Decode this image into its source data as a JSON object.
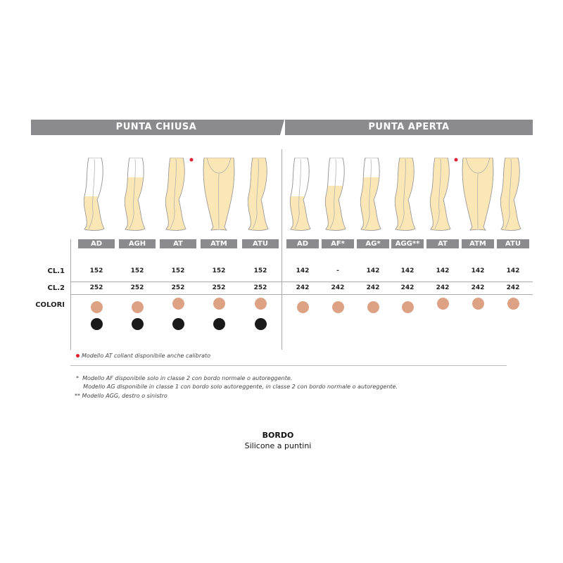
{
  "sections": [
    {
      "title": "PUNTA CHIUSA",
      "models": [
        {
          "label": "AD",
          "cl1": "152",
          "cl2": "252",
          "colors": [
            "beige",
            "black"
          ],
          "coverage": "knee",
          "view": "side",
          "calibrated": false
        },
        {
          "label": "AGH",
          "cl1": "152",
          "cl2": "252",
          "colors": [
            "beige",
            "black"
          ],
          "coverage": "thigh",
          "view": "side",
          "calibrated": false
        },
        {
          "label": "AT",
          "cl1": "152",
          "cl2": "252",
          "colors": [
            "beige",
            "black"
          ],
          "coverage": "tights",
          "view": "side",
          "calibrated": true
        },
        {
          "label": "ATM",
          "cl1": "152",
          "cl2": "252",
          "colors": [
            "beige",
            "black"
          ],
          "coverage": "tights",
          "view": "front",
          "calibrated": false
        },
        {
          "label": "ATU",
          "cl1": "152",
          "cl2": "252",
          "colors": [
            "beige",
            "black"
          ],
          "coverage": "tights",
          "view": "side",
          "calibrated": false
        }
      ]
    },
    {
      "title": "PUNTA APERTA",
      "models": [
        {
          "label": "AD",
          "cl1": "142",
          "cl2": "242",
          "colors": [
            "beige"
          ],
          "coverage": "knee",
          "view": "side",
          "calibrated": false
        },
        {
          "label": "AF*",
          "cl1": "-",
          "cl2": "242",
          "colors": [
            "beige"
          ],
          "coverage": "thigh-low",
          "view": "side",
          "calibrated": false
        },
        {
          "label": "AG*",
          "cl1": "142",
          "cl2": "242",
          "colors": [
            "beige"
          ],
          "coverage": "thigh",
          "view": "side",
          "calibrated": false
        },
        {
          "label": "AGG**",
          "cl1": "142",
          "cl2": "242",
          "colors": [
            "beige"
          ],
          "coverage": "tights",
          "view": "side",
          "calibrated": false
        },
        {
          "label": "AT",
          "cl1": "142",
          "cl2": "242",
          "colors": [
            "beige"
          ],
          "coverage": "tights",
          "view": "side",
          "calibrated": true
        },
        {
          "label": "ATM",
          "cl1": "142",
          "cl2": "242",
          "colors": [
            "beige"
          ],
          "coverage": "tights",
          "view": "front",
          "calibrated": false
        },
        {
          "label": "ATU",
          "cl1": "142",
          "cl2": "242",
          "colors": [
            "beige"
          ],
          "coverage": "tights",
          "view": "side",
          "calibrated": false
        }
      ]
    }
  ],
  "rows": {
    "cl1": "CL.1",
    "cl2": "CL.2",
    "colori": "COLORI"
  },
  "color_values": {
    "beige": "#dca283",
    "black": "#1a1a1a",
    "stocking": "#fbe6b6",
    "header": "#8b8b8d",
    "calibrated_marker": "#e0202a"
  },
  "calibrated_note": "Modello AT collant disponibile anche calibrato",
  "footnotes": [
    "*  Modello AF disponibile solo in classe 2 con bordo normale o autoreggente.",
    "    Modello AG disponibile in classe 1 con bordo solo autoreggente, in classe 2 con bordo normale o autoreggente.",
    "** Modello AGG, destro o sinistro"
  ],
  "bordo": {
    "title": "BORDO",
    "value": "Silicone a puntini"
  }
}
